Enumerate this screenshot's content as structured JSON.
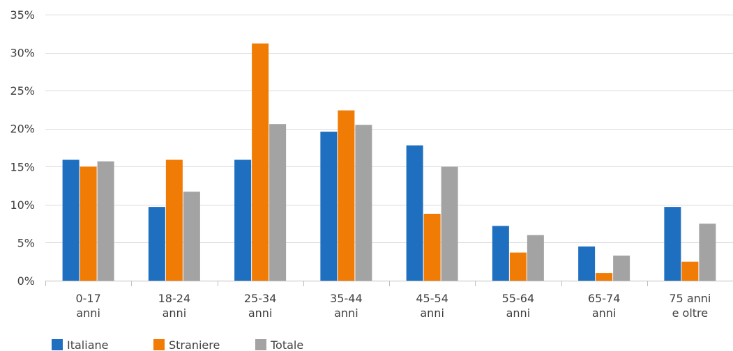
{
  "chart_data": {
    "type": "bar",
    "title": "",
    "xlabel": "",
    "ylabel": "",
    "categories": [
      [
        "0-17",
        "anni"
      ],
      [
        "18-24",
        "anni"
      ],
      [
        "25-34",
        "anni"
      ],
      [
        "35-44",
        "anni"
      ],
      [
        "45-54",
        "anni"
      ],
      [
        "55-64",
        "anni"
      ],
      [
        "65-74",
        "anni"
      ],
      [
        "75 anni",
        "e oltre"
      ]
    ],
    "series": [
      {
        "name": "Italiane",
        "color": "#1f6fc0",
        "values": [
          15.9,
          9.7,
          15.9,
          19.6,
          17.8,
          7.2,
          4.5,
          9.7
        ]
      },
      {
        "name": "Straniere",
        "color": "#f07b05",
        "values": [
          15.0,
          15.9,
          31.2,
          22.4,
          8.8,
          3.7,
          1.0,
          2.5
        ]
      },
      {
        "name": "Totale",
        "color": "#a3a3a3",
        "values": [
          15.7,
          11.7,
          20.6,
          20.5,
          15.0,
          6.0,
          3.3,
          7.5
        ]
      }
    ],
    "ylim": [
      0,
      35
    ],
    "yticks": [
      0,
      5,
      10,
      15,
      20,
      25,
      30,
      35
    ],
    "ytick_labels": [
      "0%",
      "5%",
      "10%",
      "15%",
      "20%",
      "25%",
      "30%",
      "35%"
    ],
    "grid": true,
    "legend_position": "bottom-left"
  }
}
